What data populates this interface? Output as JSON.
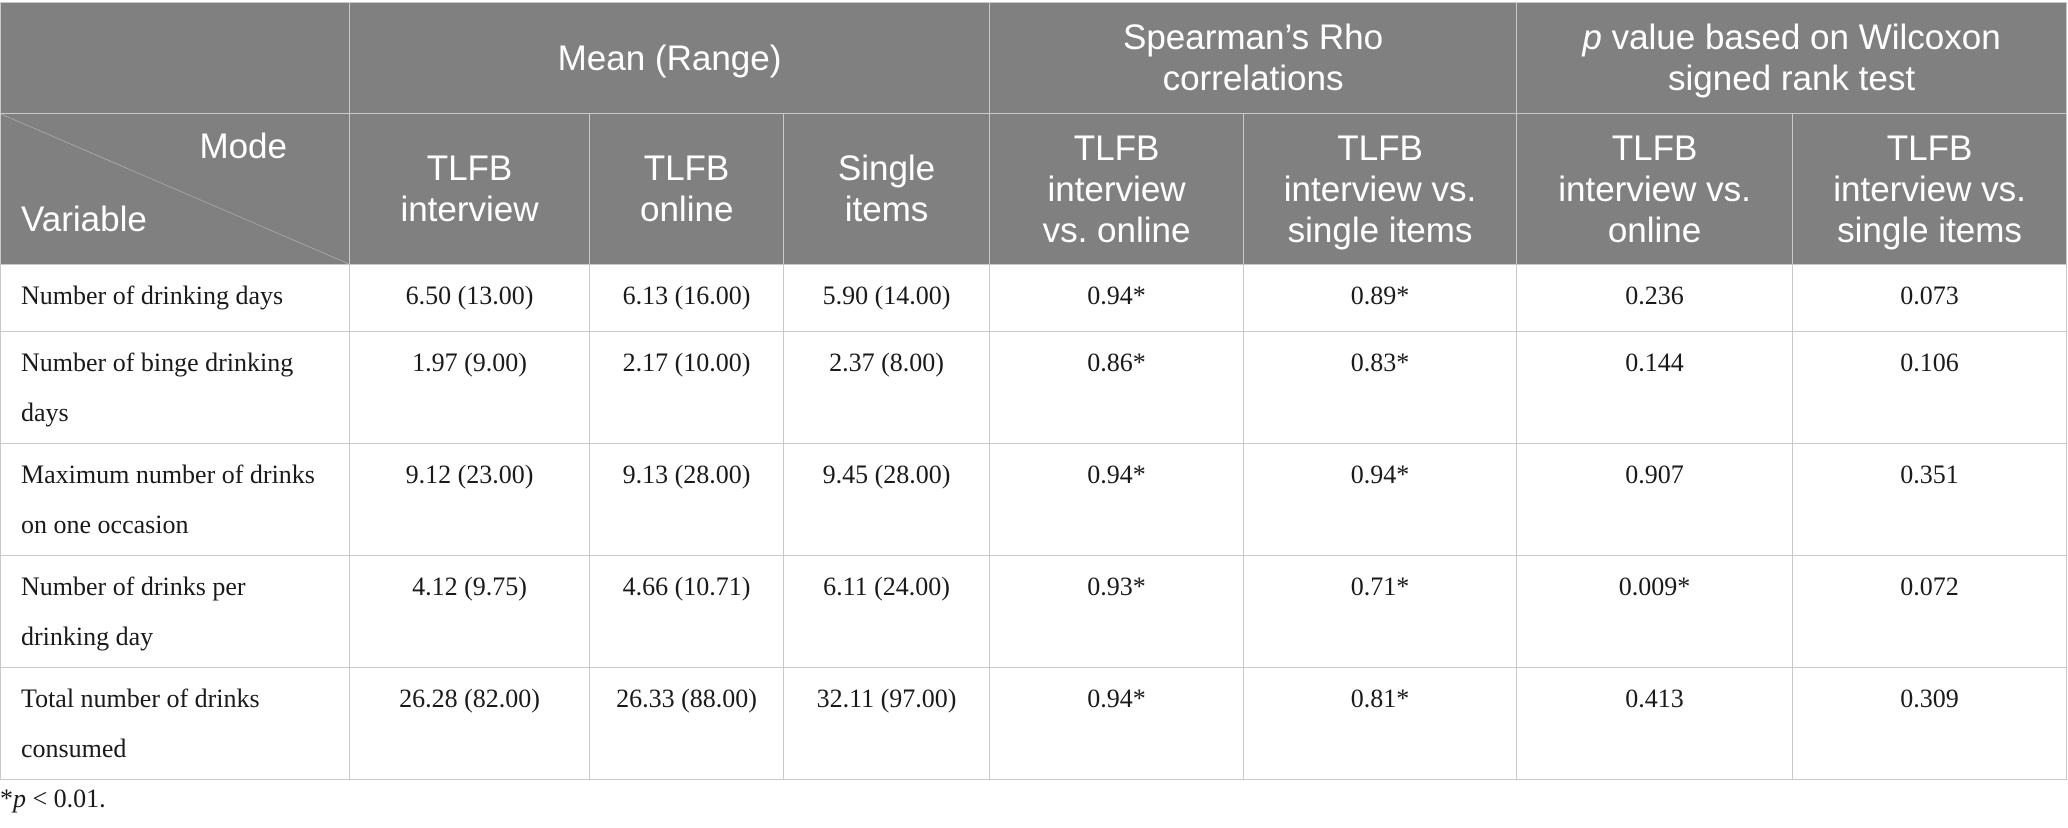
{
  "header": {
    "group_mean": "Mean (Range)",
    "group_rho": "Spearman’s Rho correlations",
    "group_p_italic": "p",
    "group_p_rest": " value based on Wilcoxon signed rank test",
    "corner_mode": "Mode",
    "corner_variable": "Variable",
    "col_tlfb_interview": "TLFB interview",
    "col_tlfb_online": "TLFB online",
    "col_single_items": "Single items",
    "col_rho_interview_online": "TLFB interview vs. online",
    "col_rho_interview_single": "TLFB interview vs. single items",
    "col_p_interview_online": "TLFB interview vs. online",
    "col_p_interview_single": "TLFB interview vs. single items"
  },
  "rows": [
    {
      "variable": "Number of drinking days",
      "tlfb_interview": "6.50 (13.00)",
      "tlfb_online": "6.13 (16.00)",
      "single_items": "5.90 (14.00)",
      "rho_interview_online": "0.94*",
      "rho_interview_single": "0.89*",
      "p_interview_online": "0.236",
      "p_interview_single": "0.073"
    },
    {
      "variable": "Number of binge drinking days",
      "tlfb_interview": "1.97 (9.00)",
      "tlfb_online": "2.17 (10.00)",
      "single_items": "2.37 (8.00)",
      "rho_interview_online": "0.86*",
      "rho_interview_single": "0.83*",
      "p_interview_online": "0.144",
      "p_interview_single": "0.106"
    },
    {
      "variable": "Maximum number of drinks on one occasion",
      "tlfb_interview": "9.12 (23.00)",
      "tlfb_online": "9.13 (28.00)",
      "single_items": "9.45 (28.00)",
      "rho_interview_online": "0.94*",
      "rho_interview_single": "0.94*",
      "p_interview_online": "0.907",
      "p_interview_single": "0.351"
    },
    {
      "variable": "Number of drinks per drinking day",
      "tlfb_interview": "4.12 (9.75)",
      "tlfb_online": "4.66 (10.71)",
      "single_items": "6.11 (24.00)",
      "rho_interview_online": "0.93*",
      "rho_interview_single": "0.71*",
      "p_interview_online": "0.009*",
      "p_interview_single": "0.072"
    },
    {
      "variable": "Total number of drinks consumed",
      "tlfb_interview": "26.28 (82.00)",
      "tlfb_online": "26.33 (88.00)",
      "single_items": "32.11 (97.00)",
      "rho_interview_online": "0.94*",
      "rho_interview_single": "0.81*",
      "p_interview_online": "0.413",
      "p_interview_single": "0.309"
    }
  ],
  "footnote": {
    "star": "*",
    "p": "p",
    "rest": " < 0.01."
  }
}
